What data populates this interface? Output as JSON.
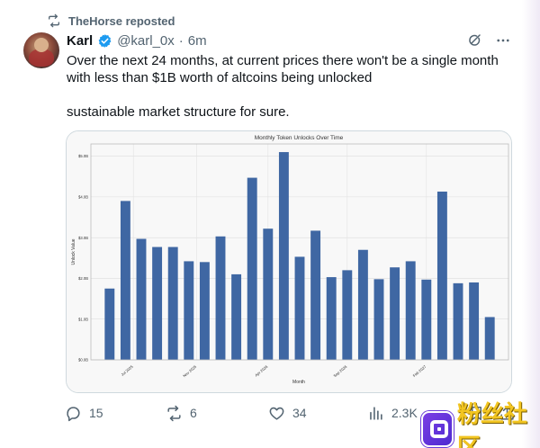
{
  "repost": {
    "label": "TheHorse reposted",
    "icon": "repost-icon"
  },
  "author": {
    "name": "Karl",
    "handle": "@karl_0x",
    "separator": "·",
    "time": "6m",
    "verified": true
  },
  "tweet": {
    "text": "Over the next 24 months, at current prices there won't be a single month with less than $1B worth of altcoins being unlocked\n\nsustainable market structure for sure."
  },
  "header_icons": [
    "grok-icon",
    "more-icon"
  ],
  "actions": {
    "reply_count": "15",
    "repost_count": "6",
    "like_count": "34",
    "views_count": "2.3K"
  },
  "watermark": {
    "text": "粉丝社区"
  },
  "chart_data": {
    "type": "bar",
    "title": "Monthly Token Unlocks Over Time",
    "xlabel": "Month",
    "ylabel": "Unlock Value",
    "ylim": [
      0,
      5.3
    ],
    "ytick_values": [
      0,
      1,
      2,
      3,
      4,
      5
    ],
    "ytick_labels": [
      "$0.0B",
      "$1.0B",
      "$2.0B",
      "$3.0B",
      "$4.0B",
      "$5.0B"
    ],
    "x_tick_labels": [
      {
        "label": "Jul 2025",
        "index": 1.5
      },
      {
        "label": "Nov 2025",
        "index": 5.5
      },
      {
        "label": "Apr 2026",
        "index": 10
      },
      {
        "label": "Sep 2026",
        "index": 15
      },
      {
        "label": "Feb 2027",
        "index": 20
      }
    ],
    "values": [
      1.75,
      3.9,
      2.97,
      2.77,
      2.77,
      2.42,
      2.4,
      3.03,
      2.1,
      4.47,
      3.22,
      5.1,
      2.53,
      3.17,
      2.03,
      2.2,
      2.7,
      1.98,
      2.27,
      2.42,
      1.97,
      4.13,
      1.88,
      1.9,
      1.05
    ],
    "bar_color": "#3f67a3",
    "grid": true,
    "legend": "none"
  }
}
